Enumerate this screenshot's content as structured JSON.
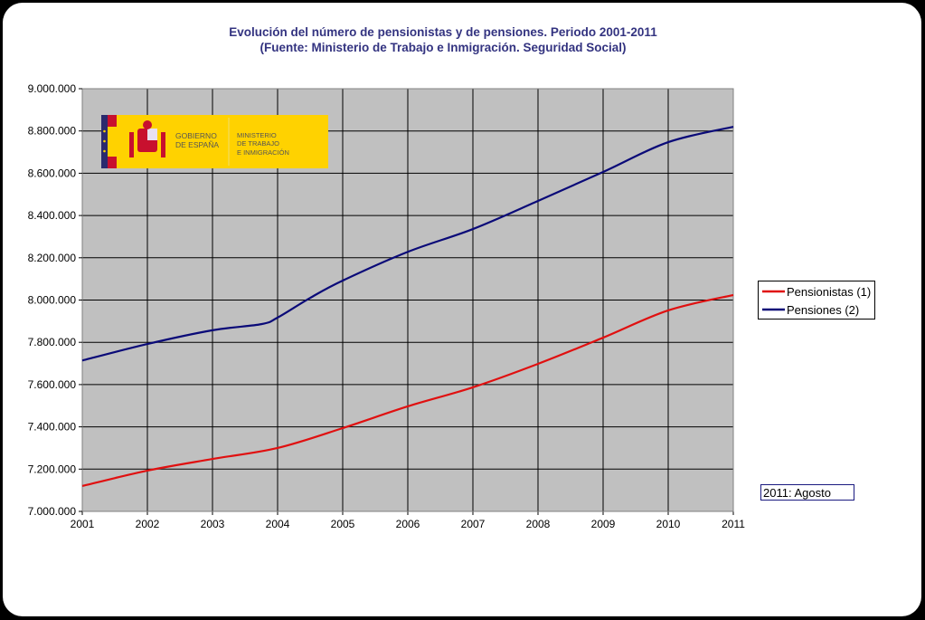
{
  "chart_data": {
    "type": "line",
    "title": "Evolución del número de pensionistas y de pensiones. Periodo 2001-2011",
    "subtitle": "(Fuente: Ministerio de Trabajo e Inmigración. Seguridad Social)",
    "xlabel": "",
    "ylabel": "",
    "xlim": [
      2001,
      2011
    ],
    "ylim": [
      7000000,
      9000000
    ],
    "x_ticks": [
      "2001",
      "2002",
      "2003",
      "2004",
      "2005",
      "2006",
      "2007",
      "2008",
      "2009",
      "2010",
      "2011"
    ],
    "y_ticks": [
      "7.000.000",
      "7.200.000",
      "7.400.000",
      "7.600.000",
      "7.800.000",
      "8.000.000",
      "8.200.000",
      "8.400.000",
      "8.600.000",
      "8.800.000",
      "9.000.000"
    ],
    "grid": true,
    "legend_position": "right",
    "series": [
      {
        "name": "Pensionistas (1)",
        "color": "#e01010",
        "x": [
          2001,
          2002,
          2003,
          2004,
          2005,
          2006,
          2007,
          2008,
          2009,
          2010,
          2011
        ],
        "values": [
          7120000,
          7193000,
          7248000,
          7300000,
          7394000,
          7497000,
          7587000,
          7698000,
          7822000,
          7951000,
          8024000
        ]
      },
      {
        "name": "Pensiones (2)",
        "color": "#0a0a78",
        "x": [
          2001,
          2002,
          2003,
          2003.75,
          2004,
          2004.5,
          2005,
          2006,
          2007,
          2008,
          2009,
          2010,
          2011
        ],
        "values": [
          7714000,
          7792000,
          7857000,
          7886000,
          7917000,
          8010000,
          8092000,
          8228000,
          8336000,
          8469000,
          8606000,
          8747000,
          8820000
        ]
      }
    ],
    "annotation": "2011: Agosto"
  },
  "logo": {
    "left": "GOBIERNO DE ESPAÑA",
    "right": "MINISTERIO DE TRABAJO E INMIGRACIÓN"
  }
}
